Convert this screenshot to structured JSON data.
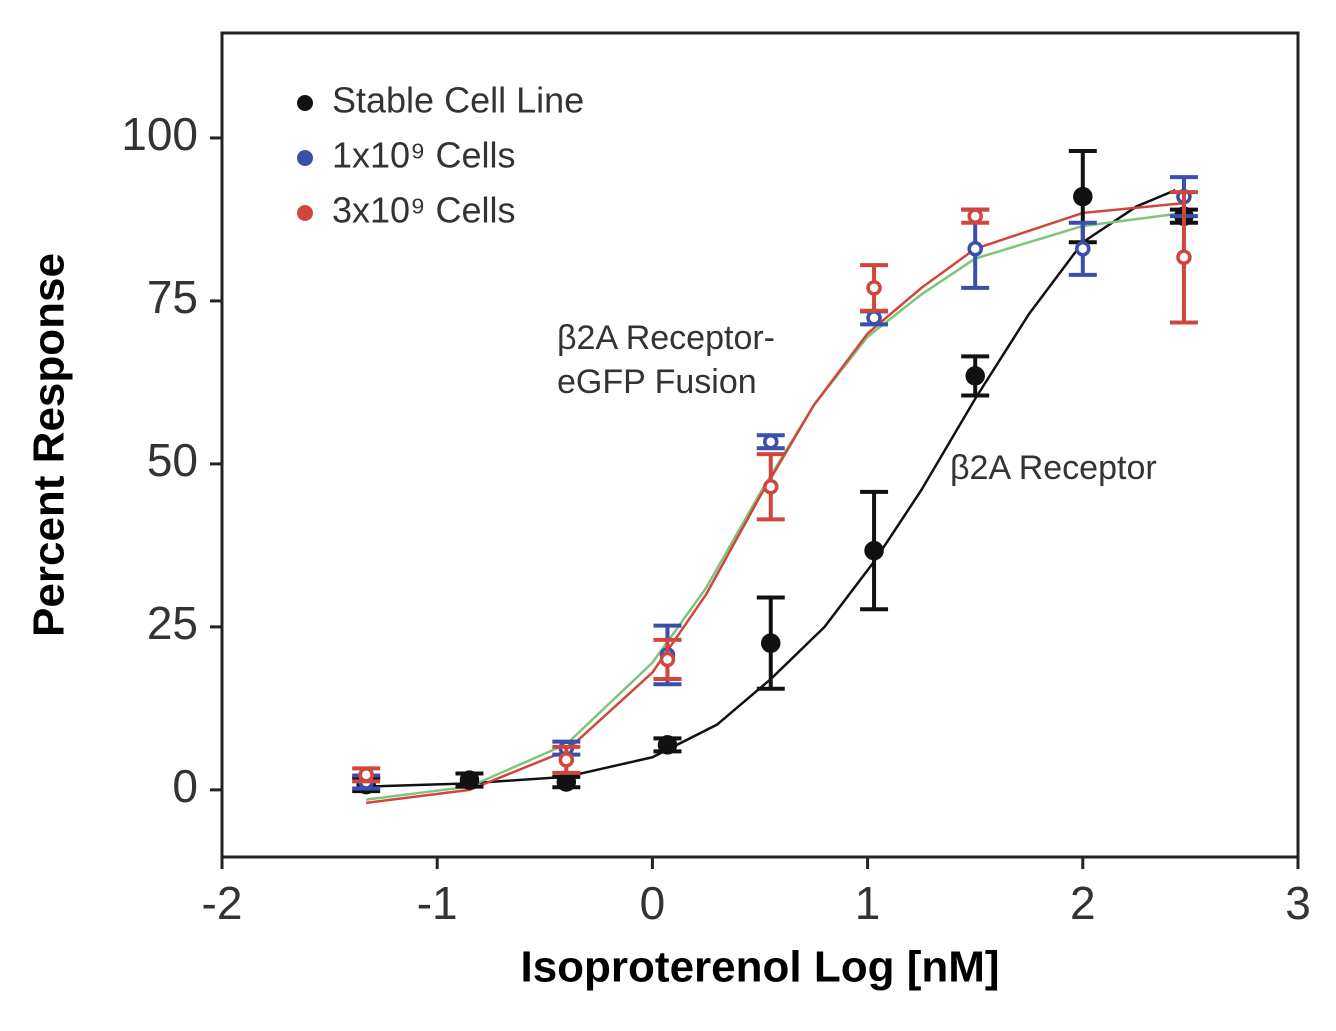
{
  "chart_data": {
    "type": "scatter",
    "xlabel": "Isoproterenol Log [nM]",
    "ylabel": "Percent Response",
    "xlim": [
      -2,
      3
    ],
    "xticks": [
      -2,
      -1,
      0,
      1,
      2,
      3
    ],
    "ylim": [
      -10.3,
      116.1
    ],
    "yticks": [
      0,
      25,
      50,
      75,
      100
    ],
    "legend": "upper left",
    "annotations": [
      "β2A Receptor-",
      "eGFP Fusion",
      "β2A Receptor"
    ],
    "series": [
      {
        "name": "Stable Cell Line",
        "color": "#111111",
        "marker": "filled",
        "x": [
          -1.33,
          -0.85,
          -0.4,
          0.07,
          0.55,
          1.03,
          1.5,
          2.0,
          2.47
        ],
        "values": [
          0.8,
          1.5,
          1.2,
          6.9,
          22.5,
          36.7,
          63.5,
          91,
          88
        ],
        "errors": [
          1,
          1,
          0.8,
          1,
          7,
          9,
          3,
          7,
          1
        ]
      },
      {
        "name": "1x10⁹ Cells",
        "color": "#3a4faa",
        "marker": "open",
        "x": [
          -1.33,
          -0.4,
          0.07,
          0.55,
          1.03,
          1.5,
          2.0,
          2.47
        ],
        "values": [
          1.2,
          6.4,
          20.7,
          53.4,
          72.4,
          83,
          83,
          91
        ],
        "errors": [
          1,
          1,
          4.5,
          1,
          1,
          6,
          4,
          3
        ]
      },
      {
        "name": "3x10⁹ Cells",
        "color": "#d0463c",
        "marker": "open",
        "x": [
          -1.33,
          -0.4,
          0.07,
          0.55,
          1.03,
          1.5,
          2.47
        ],
        "values": [
          2.3,
          4.6,
          20,
          46.5,
          77,
          88,
          81.7
        ],
        "errors": [
          1,
          2,
          3,
          5,
          3.5,
          1,
          10
        ]
      }
    ],
    "curves": [
      {
        "color": "#111111",
        "x": [
          -1.33,
          -0.85,
          -0.4,
          0,
          0.3,
          0.55,
          0.8,
          1.03,
          1.25,
          1.5,
          1.75,
          2.0,
          2.25,
          2.43
        ],
        "values": [
          0.5,
          1,
          2,
          5,
          10,
          17,
          25,
          35,
          46,
          60,
          73,
          84,
          89.5,
          92
        ]
      },
      {
        "color": "#7fc47a",
        "x": [
          -1.33,
          -0.85,
          -0.4,
          0,
          0.25,
          0.5,
          0.75,
          1.0,
          1.25,
          1.5,
          2.0,
          2.47
        ],
        "values": [
          -1.5,
          0.5,
          7,
          19.5,
          31,
          45.5,
          59,
          69.5,
          76,
          81.5,
          86.5,
          88.5
        ]
      },
      {
        "color": "#d0463c",
        "x": [
          -1.33,
          -0.85,
          -0.4,
          0,
          0.25,
          0.5,
          0.75,
          1.0,
          1.25,
          1.5,
          2.0,
          2.47
        ],
        "values": [
          -2,
          0,
          6,
          18,
          30,
          45,
          59,
          70,
          77,
          83,
          88.5,
          90
        ]
      }
    ]
  }
}
